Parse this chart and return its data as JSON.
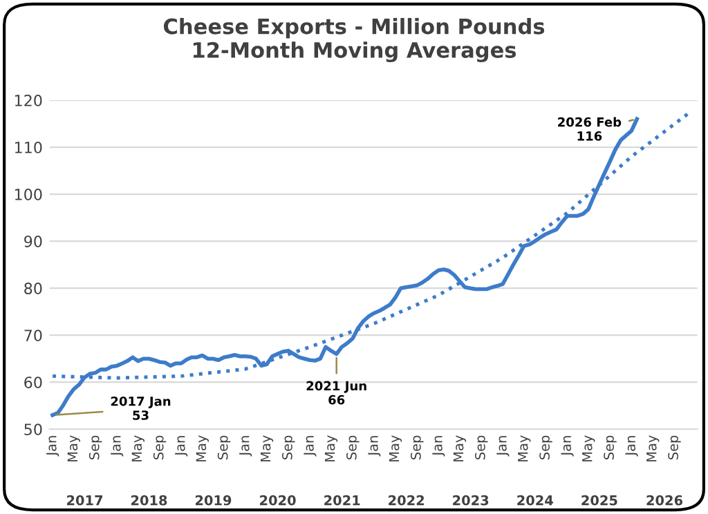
{
  "chart_data": {
    "type": "line",
    "title": "Cheese Exports - Million Pounds\n12-Month Moving Averages",
    "x": [
      "2017-01",
      "2017-02",
      "2017-03",
      "2017-04",
      "2017-05",
      "2017-06",
      "2017-07",
      "2017-08",
      "2017-09",
      "2017-10",
      "2017-11",
      "2017-12",
      "2018-01",
      "2018-02",
      "2018-03",
      "2018-04",
      "2018-05",
      "2018-06",
      "2018-07",
      "2018-08",
      "2018-09",
      "2018-10",
      "2018-11",
      "2018-12",
      "2019-01",
      "2019-02",
      "2019-03",
      "2019-04",
      "2019-05",
      "2019-06",
      "2019-07",
      "2019-08",
      "2019-09",
      "2019-10",
      "2019-11",
      "2019-12",
      "2020-01",
      "2020-02",
      "2020-03",
      "2020-04",
      "2020-05",
      "2020-06",
      "2020-07",
      "2020-08",
      "2020-09",
      "2020-10",
      "2020-11",
      "2020-12",
      "2021-01",
      "2021-02",
      "2021-03",
      "2021-04",
      "2021-05",
      "2021-06",
      "2021-07",
      "2021-08",
      "2021-09",
      "2021-10",
      "2021-11",
      "2021-12",
      "2022-01",
      "2022-02",
      "2022-03",
      "2022-04",
      "2022-05",
      "2022-06",
      "2022-07",
      "2022-08",
      "2022-09",
      "2022-10",
      "2022-11",
      "2022-12",
      "2023-01",
      "2023-02",
      "2023-03",
      "2023-04",
      "2023-05",
      "2023-06",
      "2023-07",
      "2023-08",
      "2023-09",
      "2023-10",
      "2023-11",
      "2023-12",
      "2024-01",
      "2024-02",
      "2024-03",
      "2024-04",
      "2024-05",
      "2024-06",
      "2024-07",
      "2024-08",
      "2024-09",
      "2024-10",
      "2024-11",
      "2024-12",
      "2025-01",
      "2025-02",
      "2025-03",
      "2025-04",
      "2025-05",
      "2025-06",
      "2025-07",
      "2025-08",
      "2025-09",
      "2025-10",
      "2025-11",
      "2025-12",
      "2026-01",
      "2026-02"
    ],
    "series": [
      {
        "color": "#3d7cc9",
        "line_style": "solid",
        "values": [
          53,
          53.5,
          55,
          57,
          58.5,
          59.5,
          61,
          61.8,
          62,
          62.7,
          62.7,
          63.3,
          63.5,
          64,
          64.5,
          65.3,
          64.5,
          65,
          65,
          64.7,
          64.3,
          64.2,
          63.5,
          64,
          64,
          64.8,
          65.3,
          65.3,
          65.7,
          65,
          65,
          64.7,
          65.3,
          65.5,
          65.8,
          65.5,
          65.5,
          65.4,
          65,
          63.5,
          63.8,
          65.5,
          66,
          66.5,
          66.7,
          66,
          65.3,
          65,
          64.7,
          64.6,
          65,
          67.5,
          66.7,
          66,
          67.5,
          68.3,
          69.3,
          71.5,
          73,
          74,
          74.7,
          75.2,
          75.8,
          76.5,
          78,
          80,
          80.2,
          80.4,
          80.6,
          81.2,
          82,
          83,
          83.8,
          84,
          83.7,
          82.8,
          81.5,
          80.2,
          80,
          79.8,
          79.8,
          79.8,
          80.2,
          80.5,
          80.9,
          83,
          85,
          87,
          89,
          89.3,
          90,
          90.8,
          91.5,
          92,
          92.5,
          94,
          95.4,
          95.4,
          95.4,
          95.8,
          96.8,
          99.5,
          102,
          104.5,
          107,
          109.5,
          111.5,
          112.5,
          113.5,
          116
        ]
      },
      {
        "color": "#3d7cc9",
        "line_style": "dotted",
        "type": "line",
        "x": [
          "2017-01",
          "2018-01",
          "2019-01",
          "2020-01",
          "2021-01",
          "2022-01",
          "2023-01",
          "2024-01",
          "2025-01",
          "2026-01",
          "2026-12"
        ],
        "values": [
          61.3,
          60.9,
          61.3,
          62.8,
          67.5,
          72.5,
          78.5,
          86.5,
          96,
          108,
          117.5
        ]
      }
    ],
    "xlim": [
      "2016-12-15",
      "2027-01-10"
    ],
    "xticks": [
      {
        "value": "2017-01",
        "label": "Jan"
      },
      {
        "value": "2017-05",
        "label": "May"
      },
      {
        "value": "2017-09",
        "label": "Sep"
      },
      {
        "value": "2018-01",
        "label": "Jan"
      },
      {
        "value": "2018-05",
        "label": "May"
      },
      {
        "value": "2018-09",
        "label": "Sep"
      },
      {
        "value": "2019-01",
        "label": "Jan"
      },
      {
        "value": "2019-05",
        "label": "May"
      },
      {
        "value": "2019-09",
        "label": "Sep"
      },
      {
        "value": "2020-01",
        "label": "Jan"
      },
      {
        "value": "2020-05",
        "label": "May"
      },
      {
        "value": "2020-09",
        "label": "Sep"
      },
      {
        "value": "2021-01",
        "label": "Jan"
      },
      {
        "value": "2021-05",
        "label": "May"
      },
      {
        "value": "2021-09",
        "label": "Sep"
      },
      {
        "value": "2022-01",
        "label": "Jan"
      },
      {
        "value": "2022-05",
        "label": "May"
      },
      {
        "value": "2022-09",
        "label": "Sep"
      },
      {
        "value": "2023-01",
        "label": "Jan"
      },
      {
        "value": "2023-05",
        "label": "May"
      },
      {
        "value": "2023-09",
        "label": "Sep"
      },
      {
        "value": "2024-01",
        "label": "Jan"
      },
      {
        "value": "2024-05",
        "label": "May"
      },
      {
        "value": "2024-09",
        "label": "Sep"
      },
      {
        "value": "2025-01",
        "label": "Jan"
      },
      {
        "value": "2025-05",
        "label": "May"
      },
      {
        "value": "2025-09",
        "label": "Sep"
      },
      {
        "value": "2026-01",
        "label": "Jan"
      },
      {
        "value": "2026-05",
        "label": "May"
      },
      {
        "value": "2026-09",
        "label": "Sep"
      }
    ],
    "ylim": [
      50,
      120
    ],
    "yticks": [
      50,
      60,
      70,
      80,
      90,
      100,
      110,
      120
    ],
    "grid": "y",
    "marker": "none",
    "annotations": [
      {
        "text": "2017 Jan\n53",
        "x": "2017-01",
        "y": 53
      },
      {
        "text": "2021 Jun\n66",
        "x": "2021-06",
        "y": 66
      },
      {
        "text": "2026 Feb\n116",
        "x": "2026-02",
        "y": 116
      },
      "2017",
      "2018",
      "2019",
      "2020",
      "2021",
      "2022",
      "2023",
      "2024",
      "2025",
      "2026"
    ]
  }
}
